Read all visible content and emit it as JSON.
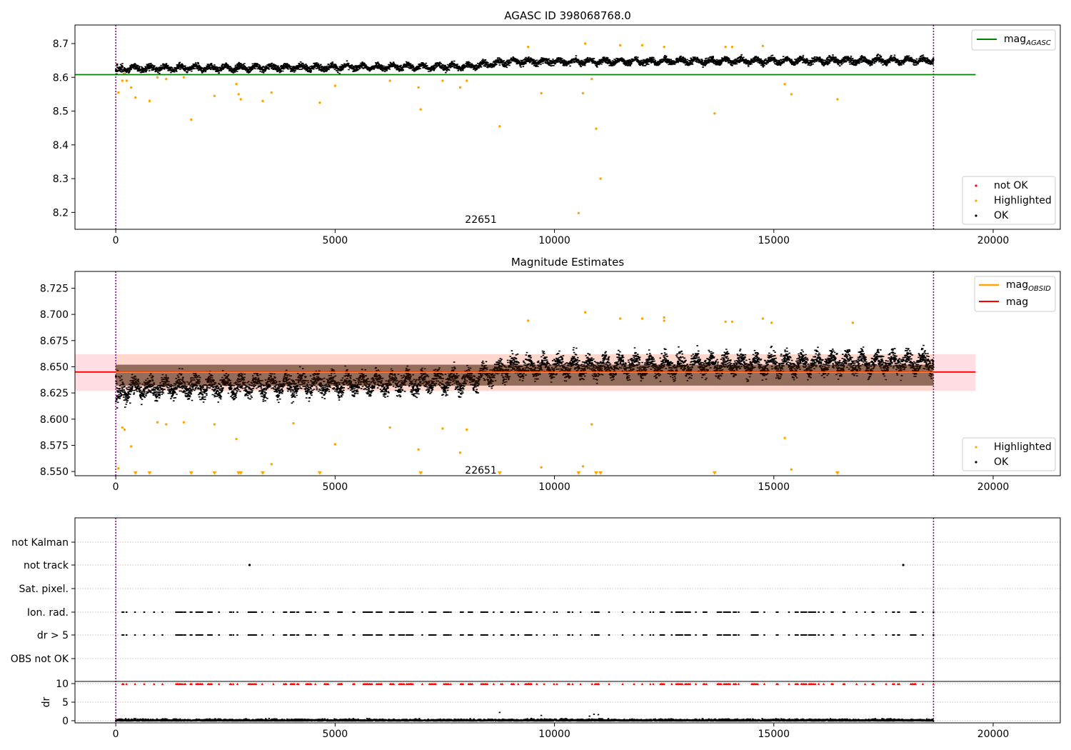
{
  "colors": {
    "ok": "#000000",
    "highlighted": "#ffa500",
    "not_ok": "#ff0000",
    "agasc_line": "#008000",
    "mag_line": "#ff0000",
    "obsid_line": "#ffa500",
    "band": "#ffb6c1",
    "band_inner": "#ffd0b8",
    "vline": "#800080"
  },
  "chart_data": [
    {
      "type": "scatter",
      "title": "AGASC ID 398068768.0",
      "xlim": [
        -930,
        21530
      ],
      "ylim": [
        8.15,
        8.755
      ],
      "xticks": [
        0,
        5000,
        10000,
        15000,
        20000
      ],
      "xtick_labels": [
        "0",
        "5000",
        "10000",
        "15000",
        "20000"
      ],
      "yticks": [
        8.2,
        8.3,
        8.4,
        8.5,
        8.6,
        8.7
      ],
      "ytick_labels": [
        "8.2",
        "8.3",
        "8.4",
        "8.5",
        "8.6",
        "8.7"
      ],
      "vlines": [
        0,
        18640
      ],
      "hline": {
        "y": 8.608,
        "x_range": [
          -930,
          19600
        ],
        "label_main": "mag",
        "label_sub": "AGASC"
      },
      "annotation": {
        "text": "22651",
        "x": 9300,
        "y": 8.165
      },
      "ok_series": {
        "name": "OK",
        "x_range": [
          0,
          18640
        ],
        "trend": [
          [
            0,
            8.628
          ],
          [
            8000,
            8.634
          ],
          [
            9000,
            8.648
          ],
          [
            18640,
            8.652
          ]
        ],
        "spread": 0.028
      },
      "highlighted": {
        "name": "Highlighted",
        "points": [
          [
            60,
            8.555
          ],
          [
            150,
            8.59
          ],
          [
            200,
            8.61
          ],
          [
            250,
            8.59
          ],
          [
            350,
            8.57
          ],
          [
            450,
            8.54
          ],
          [
            770,
            8.53
          ],
          [
            950,
            8.6
          ],
          [
            1150,
            8.595
          ],
          [
            1550,
            8.6
          ],
          [
            1720,
            8.475
          ],
          [
            2250,
            8.545
          ],
          [
            2750,
            8.58
          ],
          [
            2800,
            8.55
          ],
          [
            2850,
            8.535
          ],
          [
            3350,
            8.53
          ],
          [
            3550,
            8.555
          ],
          [
            4650,
            8.525
          ],
          [
            5000,
            8.575
          ],
          [
            6250,
            8.59
          ],
          [
            6900,
            8.57
          ],
          [
            6950,
            8.505
          ],
          [
            7450,
            8.59
          ],
          [
            7850,
            8.57
          ],
          [
            8000,
            8.59
          ],
          [
            8750,
            8.455
          ],
          [
            9400,
            8.69
          ],
          [
            9700,
            8.553
          ],
          [
            10550,
            8.198
          ],
          [
            10650,
            8.553
          ],
          [
            10700,
            8.7
          ],
          [
            10850,
            8.595
          ],
          [
            10950,
            8.448
          ],
          [
            11050,
            8.3
          ],
          [
            11500,
            8.695
          ],
          [
            12000,
            8.695
          ],
          [
            12500,
            8.69
          ],
          [
            13650,
            8.493
          ],
          [
            13900,
            8.69
          ],
          [
            14050,
            8.69
          ],
          [
            14750,
            8.693
          ],
          [
            15250,
            8.58
          ],
          [
            15400,
            8.55
          ],
          [
            16450,
            8.535
          ]
        ]
      },
      "legend_lines": [
        "mag"
      ],
      "legend_points": [
        "not OK",
        "Highlighted",
        "OK"
      ]
    },
    {
      "type": "scatter",
      "title": "Magnitude Estimates",
      "xlim": [
        -930,
        21530
      ],
      "ylim": [
        8.546,
        8.741
      ],
      "xticks": [
        0,
        5000,
        10000,
        15000,
        20000
      ],
      "xtick_labels": [
        "0",
        "5000",
        "10000",
        "15000",
        "20000"
      ],
      "yticks": [
        8.55,
        8.575,
        8.6,
        8.625,
        8.65,
        8.675,
        8.7,
        8.725
      ],
      "ytick_labels": [
        "8.550",
        "8.575",
        "8.600",
        "8.625",
        "8.650",
        "8.675",
        "8.700",
        "8.725"
      ],
      "vlines": [
        0,
        18640
      ],
      "mag_line": {
        "y": 8.645,
        "x_range": [
          -930,
          19600
        ],
        "label": "mag"
      },
      "band": {
        "y_range": [
          8.627,
          8.662
        ],
        "x_range": [
          -930,
          19600
        ]
      },
      "obsid_line": {
        "y": 8.645,
        "x_range": [
          0,
          18640
        ],
        "label_main": "mag",
        "label_sub": "OBSID"
      },
      "annotation": {
        "text": "22651",
        "x": 9300,
        "y": 8.5515
      },
      "ok_series": {
        "name": "OK",
        "x_range": [
          0,
          18640
        ],
        "trend": [
          [
            0,
            8.63
          ],
          [
            8000,
            8.637
          ],
          [
            9000,
            8.65
          ],
          [
            18640,
            8.655
          ]
        ],
        "spread": 0.028
      },
      "highlighted": {
        "name": "Highlighted",
        "points": [
          [
            60,
            8.553
          ],
          [
            150,
            8.592
          ],
          [
            200,
            8.59
          ],
          [
            350,
            8.574
          ],
          [
            950,
            8.597
          ],
          [
            1150,
            8.595
          ],
          [
            1550,
            8.597
          ],
          [
            2250,
            8.595
          ],
          [
            2750,
            8.581
          ],
          [
            3550,
            8.557
          ],
          [
            4050,
            8.596
          ],
          [
            5000,
            8.576
          ],
          [
            6250,
            8.592
          ],
          [
            6900,
            8.571
          ],
          [
            7450,
            8.591
          ],
          [
            7850,
            8.568
          ],
          [
            8000,
            8.59
          ],
          [
            9400,
            8.694
          ],
          [
            9700,
            8.554
          ],
          [
            10650,
            8.555
          ],
          [
            10700,
            8.702
          ],
          [
            10850,
            8.595
          ],
          [
            11500,
            8.696
          ],
          [
            12000,
            8.696
          ],
          [
            12500,
            8.697
          ],
          [
            12500,
            8.694
          ],
          [
            13900,
            8.693
          ],
          [
            14050,
            8.693
          ],
          [
            14750,
            8.696
          ],
          [
            14950,
            8.692
          ],
          [
            15250,
            8.582
          ],
          [
            15400,
            8.552
          ],
          [
            16800,
            8.692
          ]
        ]
      },
      "clipped_markers": [
        450,
        770,
        1720,
        2250,
        2800,
        2850,
        3350,
        4650,
        6950,
        8750,
        10550,
        10950,
        11050,
        13650,
        16450
      ],
      "legend_lines": [
        "mag",
        "mag"
      ],
      "legend_points": [
        "Highlighted",
        "OK"
      ]
    },
    {
      "type": "scatter",
      "xlim": [
        -930,
        21530
      ],
      "flag_categories": [
        "not Kalman",
        "not track",
        "Sat. pixel.",
        "Ion. rad.",
        "dr > 5",
        "OBS not OK"
      ],
      "not_track_points": [
        3050,
        17950
      ],
      "dr_yticks": [
        0,
        5,
        10
      ],
      "dr_ylabel": "dr",
      "dr_ylim": [
        -0.6,
        10.5
      ],
      "xticks": [
        0,
        5000,
        10000,
        15000,
        20000
      ],
      "xtick_labels": [
        "0",
        "5000",
        "10000",
        "15000",
        "20000"
      ],
      "vlines": [
        0,
        18640
      ]
    }
  ]
}
